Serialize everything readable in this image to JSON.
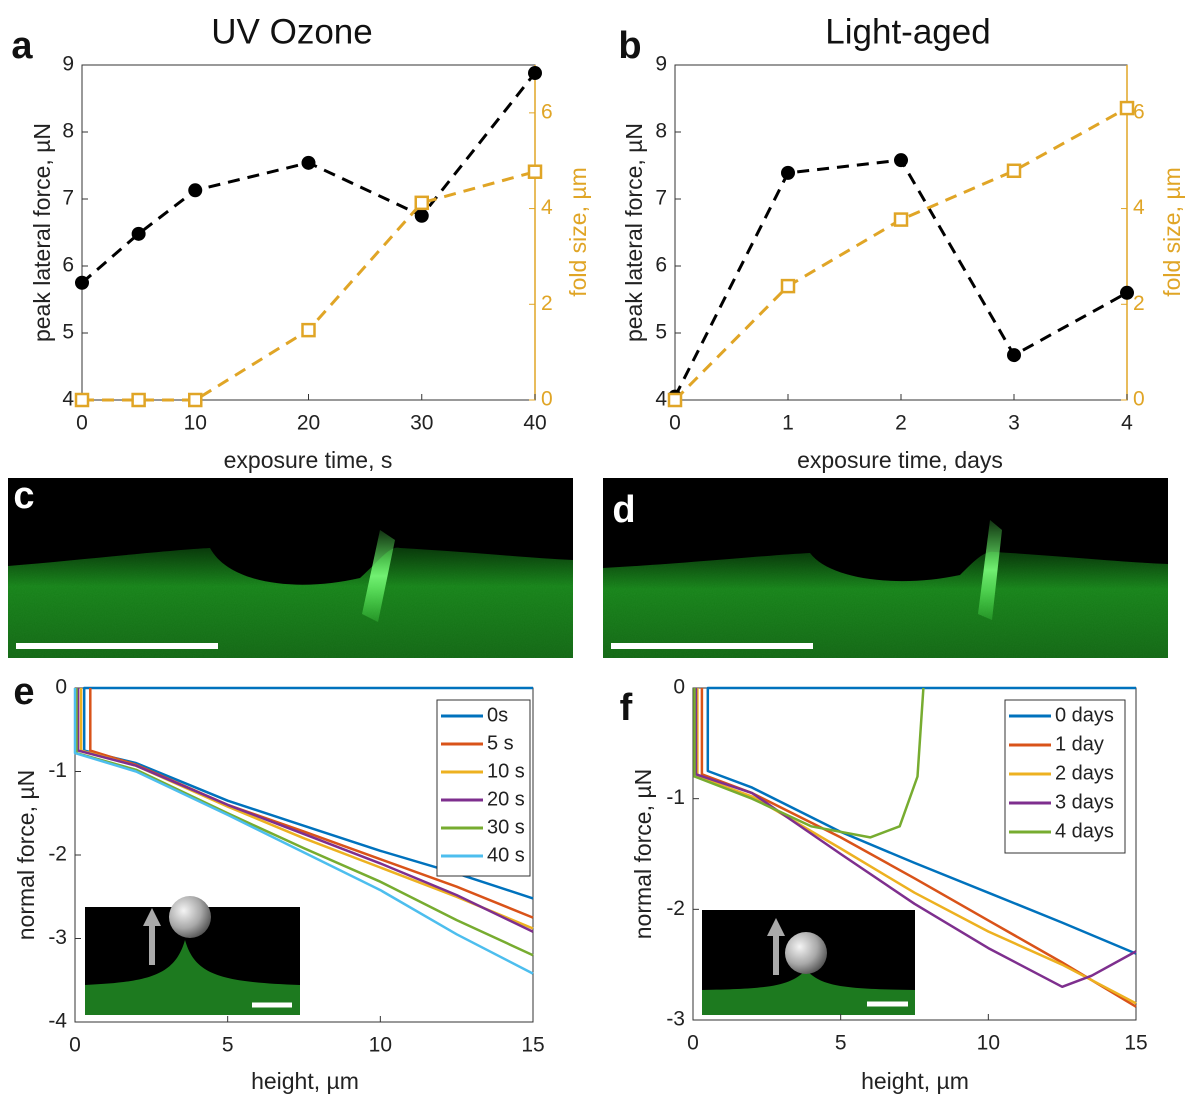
{
  "chart_data": [
    {
      "type": "line",
      "panel_label": "a",
      "title": "UV Ozone",
      "xlabel": "exposure time, s",
      "ylabel": "peak lateral force, µN",
      "y2label": "fold size, µm",
      "x": [
        0,
        5,
        10,
        20,
        30,
        40
      ],
      "xlim": [
        0,
        40
      ],
      "xticks": [
        0,
        10,
        20,
        30,
        40
      ],
      "ylim": [
        4,
        9
      ],
      "yticks": [
        4,
        5,
        6,
        7,
        8,
        9
      ],
      "y2lim": [
        0,
        7
      ],
      "y2ticks": [
        0,
        2,
        4,
        6
      ],
      "y2color": "#e0a526",
      "series": [
        {
          "color": "#000000",
          "linestyle": "dashed",
          "marker": "circle",
          "values": [
            5.75,
            6.48,
            7.13,
            7.54,
            6.75,
            8.88
          ]
        },
        {
          "color": "#e0a526",
          "linestyle": "dashed",
          "marker": "square",
          "axis": "y2",
          "values": [
            0,
            0,
            0,
            1.46,
            4.12,
            4.77
          ]
        }
      ]
    },
    {
      "type": "line",
      "panel_label": "b",
      "title": "Light-aged",
      "xlabel": "exposure time, days",
      "ylabel": "peak lateral force, µN",
      "y2label": "fold size, µm",
      "x": [
        0,
        1,
        2,
        3,
        4
      ],
      "xlim": [
        0,
        4
      ],
      "xticks": [
        0,
        1,
        2,
        3,
        4
      ],
      "ylim": [
        4,
        9
      ],
      "yticks": [
        4,
        5,
        6,
        7,
        8,
        9
      ],
      "y2lim": [
        0,
        7
      ],
      "y2ticks": [
        0,
        2,
        4,
        6
      ],
      "y2color": "#e0a526",
      "series": [
        {
          "color": "#000000",
          "linestyle": "dashed",
          "marker": "circle",
          "values": [
            4.05,
            7.39,
            7.58,
            4.67,
            5.6
          ]
        },
        {
          "color": "#e0a526",
          "linestyle": "dashed",
          "marker": "square",
          "axis": "y2",
          "values": [
            0,
            2.38,
            3.77,
            4.79,
            6.1
          ]
        }
      ]
    },
    {
      "type": "image",
      "panel_label": "c"
    },
    {
      "type": "image",
      "panel_label": "d"
    },
    {
      "type": "line",
      "panel_label": "e",
      "xlabel": "height, µm",
      "ylabel": "normal force, µN",
      "xlim": [
        0,
        15
      ],
      "xticks": [
        0,
        5,
        10,
        15
      ],
      "ylim": [
        -4,
        0
      ],
      "yticks": [
        -4,
        -3,
        -2,
        -1,
        0
      ],
      "legend": "upper right",
      "series": [
        {
          "name": "0s",
          "color": "#0072bd",
          "x": [
            15,
            0.3,
            0.3,
            2,
            5,
            7.5,
            10,
            12.5,
            15
          ],
          "values": [
            0,
            0,
            -0.75,
            -0.9,
            -1.35,
            -1.65,
            -1.95,
            -2.22,
            -2.52
          ]
        },
        {
          "name": "5 s",
          "color": "#d95319",
          "x": [
            0.5,
            0.5,
            2,
            5,
            7.5,
            10,
            12.5,
            15
          ],
          "values": [
            0,
            -0.75,
            -0.92,
            -1.4,
            -1.72,
            -2.05,
            -2.38,
            -2.75
          ]
        },
        {
          "name": "10 s",
          "color": "#edb120",
          "x": [
            0.2,
            0.2,
            2,
            5,
            7.5,
            10,
            12.5,
            15
          ],
          "values": [
            0,
            -0.75,
            -0.93,
            -1.42,
            -1.8,
            -2.15,
            -2.5,
            -2.88
          ]
        },
        {
          "name": "20 s",
          "color": "#7e2f8e",
          "x": [
            0.1,
            0.1,
            2,
            5,
            7.5,
            10,
            12.5,
            15
          ],
          "values": [
            0,
            -0.75,
            -0.93,
            -1.4,
            -1.75,
            -2.1,
            -2.48,
            -2.92
          ]
        },
        {
          "name": "30 s",
          "color": "#77ac30",
          "x": [
            0.05,
            0.05,
            2,
            5,
            7.5,
            10,
            12.5,
            15
          ],
          "values": [
            0,
            -0.78,
            -0.98,
            -1.5,
            -1.92,
            -2.32,
            -2.78,
            -3.2
          ]
        },
        {
          "name": "40 s",
          "color": "#4dbeee",
          "x": [
            0,
            0,
            2,
            5,
            7.5,
            10,
            12.5,
            15
          ],
          "values": [
            0,
            -0.78,
            -1.0,
            -1.52,
            -1.97,
            -2.42,
            -2.95,
            -3.42
          ]
        }
      ]
    },
    {
      "type": "line",
      "panel_label": "f",
      "xlabel": "height, µm",
      "ylabel": "normal force, µN",
      "xlim": [
        0,
        15
      ],
      "xticks": [
        0,
        5,
        10,
        15
      ],
      "ylim": [
        -3,
        0
      ],
      "yticks": [
        -3,
        -2,
        -1,
        0
      ],
      "legend": "upper right",
      "series": [
        {
          "name": "0 days",
          "color": "#0072bd",
          "x": [
            15,
            0.5,
            0.5,
            2,
            5,
            7.5,
            10,
            12.5,
            15
          ],
          "values": [
            0,
            0,
            -0.75,
            -0.9,
            -1.3,
            -1.58,
            -1.85,
            -2.12,
            -2.4
          ]
        },
        {
          "name": "1 day",
          "color": "#d95319",
          "x": [
            0.3,
            0.3,
            2,
            5,
            7.5,
            10,
            12.5,
            15
          ],
          "values": [
            0,
            -0.78,
            -0.95,
            -1.35,
            -1.72,
            -2.1,
            -2.48,
            -2.88
          ]
        },
        {
          "name": "2 days",
          "color": "#edb120",
          "x": [
            0.15,
            0.15,
            2,
            5,
            7.5,
            10,
            12.5,
            15
          ],
          "values": [
            0,
            -0.8,
            -0.98,
            -1.45,
            -1.85,
            -2.2,
            -2.5,
            -2.85
          ]
        },
        {
          "name": "3 days",
          "color": "#7e2f8e",
          "x": [
            0.1,
            0.1,
            2,
            5,
            7.5,
            10,
            12.5,
            13.5,
            15
          ],
          "values": [
            0,
            -0.78,
            -0.95,
            -1.5,
            -1.95,
            -2.35,
            -2.7,
            -2.6,
            -2.38
          ]
        },
        {
          "name": "4 days",
          "color": "#77ac30",
          "x": [
            0.05,
            0.05,
            2,
            4,
            6,
            7,
            7.6,
            7.8
          ],
          "values": [
            0,
            -0.8,
            -1.0,
            -1.25,
            -1.35,
            -1.25,
            -0.8,
            0
          ]
        }
      ]
    }
  ]
}
